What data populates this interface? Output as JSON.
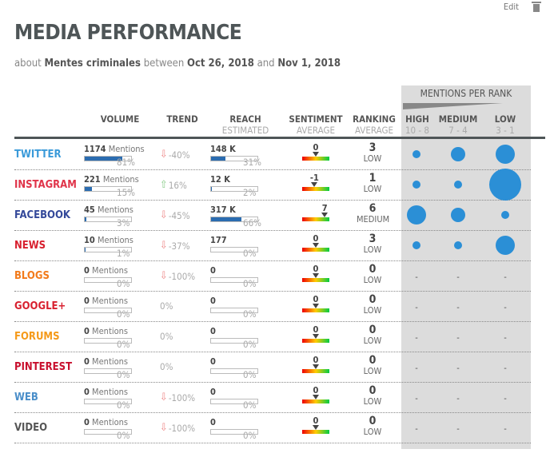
{
  "toolbar": {
    "edit": "Edit"
  },
  "title": "MEDIA PERFORMANCE",
  "subtitle": {
    "about": "about",
    "topic": "Mentes criminales",
    "between": "between",
    "start": "Oct 26, 2018",
    "and": "and",
    "end": "Nov 1, 2018"
  },
  "headers": {
    "volume": "VOLUME",
    "trend": "TREND",
    "reach": "REACH",
    "reach_sub": "ESTIMATED",
    "sentiment": "SENTIMENT",
    "sentiment_sub": "AVERAGE",
    "ranking": "RANKING",
    "ranking_sub": "AVERAGE",
    "rank_panel": "MENTIONS PER RANK",
    "high": "HIGH",
    "high_sub": "10 - 8",
    "medium": "MEDIUM",
    "medium_sub": "7 - 4",
    "low": "LOW",
    "low_sub": "3 - 1"
  },
  "mentions_word": "Mentions",
  "rows": [
    {
      "name": "TWITTER",
      "color": "#3a9ad9",
      "mentions": "1174",
      "vol_pct": 81,
      "vol_label": "81%",
      "trend": "-40%",
      "trend_dir": "down",
      "reach": "148 K",
      "reach_pct": 31,
      "reach_label": "31%",
      "sentiment": "0",
      "sent_value": 0,
      "rank": "3",
      "rank_label": "LOW",
      "bubbles": [
        1,
        2,
        3
      ]
    },
    {
      "name": "INSTAGRAM",
      "color": "#e0344a",
      "mentions": "221",
      "vol_pct": 15,
      "vol_label": "15%",
      "trend": "16%",
      "trend_dir": "up",
      "reach": "12 K",
      "reach_pct": 2,
      "reach_label": "2%",
      "sentiment": "-1",
      "sent_value": -1,
      "rank": "1",
      "rank_label": "LOW",
      "bubbles": [
        1,
        1,
        4
      ]
    },
    {
      "name": "FACEBOOK",
      "color": "#34499a",
      "mentions": "45",
      "vol_pct": 3,
      "vol_label": "3%",
      "trend": "-45%",
      "trend_dir": "down",
      "reach": "317 K",
      "reach_pct": 66,
      "reach_label": "66%",
      "sentiment": "7",
      "sent_value": 7,
      "rank": "6",
      "rank_label": "MEDIUM",
      "bubbles": [
        3,
        2,
        1
      ]
    },
    {
      "name": "NEWS",
      "color": "#d8202f",
      "mentions": "10",
      "vol_pct": 1,
      "vol_label": "1%",
      "trend": "-37%",
      "trend_dir": "down",
      "reach": "177",
      "reach_pct": 0,
      "reach_label": "0%",
      "sentiment": "0",
      "sent_value": 0,
      "rank": "3",
      "rank_label": "LOW",
      "bubbles": [
        1,
        1,
        3
      ]
    },
    {
      "name": "BLOGS",
      "color": "#f27a1a",
      "mentions": "0",
      "vol_pct": 0,
      "vol_label": "0%",
      "trend": "-100%",
      "trend_dir": "down",
      "reach": "0",
      "reach_pct": 0,
      "reach_label": "0%",
      "sentiment": "0",
      "sent_value": 0,
      "rank": "0",
      "rank_label": "LOW",
      "bubbles": [
        0,
        0,
        0
      ]
    },
    {
      "name": "GOOGLE+",
      "color": "#d8202f",
      "mentions": "0",
      "vol_pct": 0,
      "vol_label": "0%",
      "trend": "0%",
      "trend_dir": "none",
      "reach": "0",
      "reach_pct": 0,
      "reach_label": "0%",
      "sentiment": "0",
      "sent_value": 0,
      "rank": "0",
      "rank_label": "LOW",
      "bubbles": [
        0,
        0,
        0
      ]
    },
    {
      "name": "FORUMS",
      "color": "#f59a1a",
      "mentions": "0",
      "vol_pct": 0,
      "vol_label": "0%",
      "trend": "0%",
      "trend_dir": "none",
      "reach": "0",
      "reach_pct": 0,
      "reach_label": "0%",
      "sentiment": "0",
      "sent_value": 0,
      "rank": "0",
      "rank_label": "LOW",
      "bubbles": [
        0,
        0,
        0
      ]
    },
    {
      "name": "PINTEREST",
      "color": "#c8102e",
      "mentions": "0",
      "vol_pct": 0,
      "vol_label": "0%",
      "trend": "0%",
      "trend_dir": "none",
      "reach": "0",
      "reach_pct": 0,
      "reach_label": "0%",
      "sentiment": "0",
      "sent_value": 0,
      "rank": "0",
      "rank_label": "LOW",
      "bubbles": [
        0,
        0,
        0
      ]
    },
    {
      "name": "WEB",
      "color": "#4a8ec9",
      "mentions": "0",
      "vol_pct": 0,
      "vol_label": "0%",
      "trend": "-100%",
      "trend_dir": "down",
      "reach": "0",
      "reach_pct": 0,
      "reach_label": "0%",
      "sentiment": "0",
      "sent_value": 0,
      "rank": "0",
      "rank_label": "LOW",
      "bubbles": [
        0,
        0,
        0
      ]
    },
    {
      "name": "VIDEO",
      "color": "#555555",
      "mentions": "0",
      "vol_pct": 0,
      "vol_label": "0%",
      "trend": "-100%",
      "trend_dir": "down",
      "reach": "0",
      "reach_pct": 0,
      "reach_label": "0%",
      "sentiment": "0",
      "sent_value": 0,
      "rank": "0",
      "rank_label": "LOW",
      "bubbles": [
        0,
        0,
        0
      ]
    }
  ],
  "empty_bubble": "-"
}
